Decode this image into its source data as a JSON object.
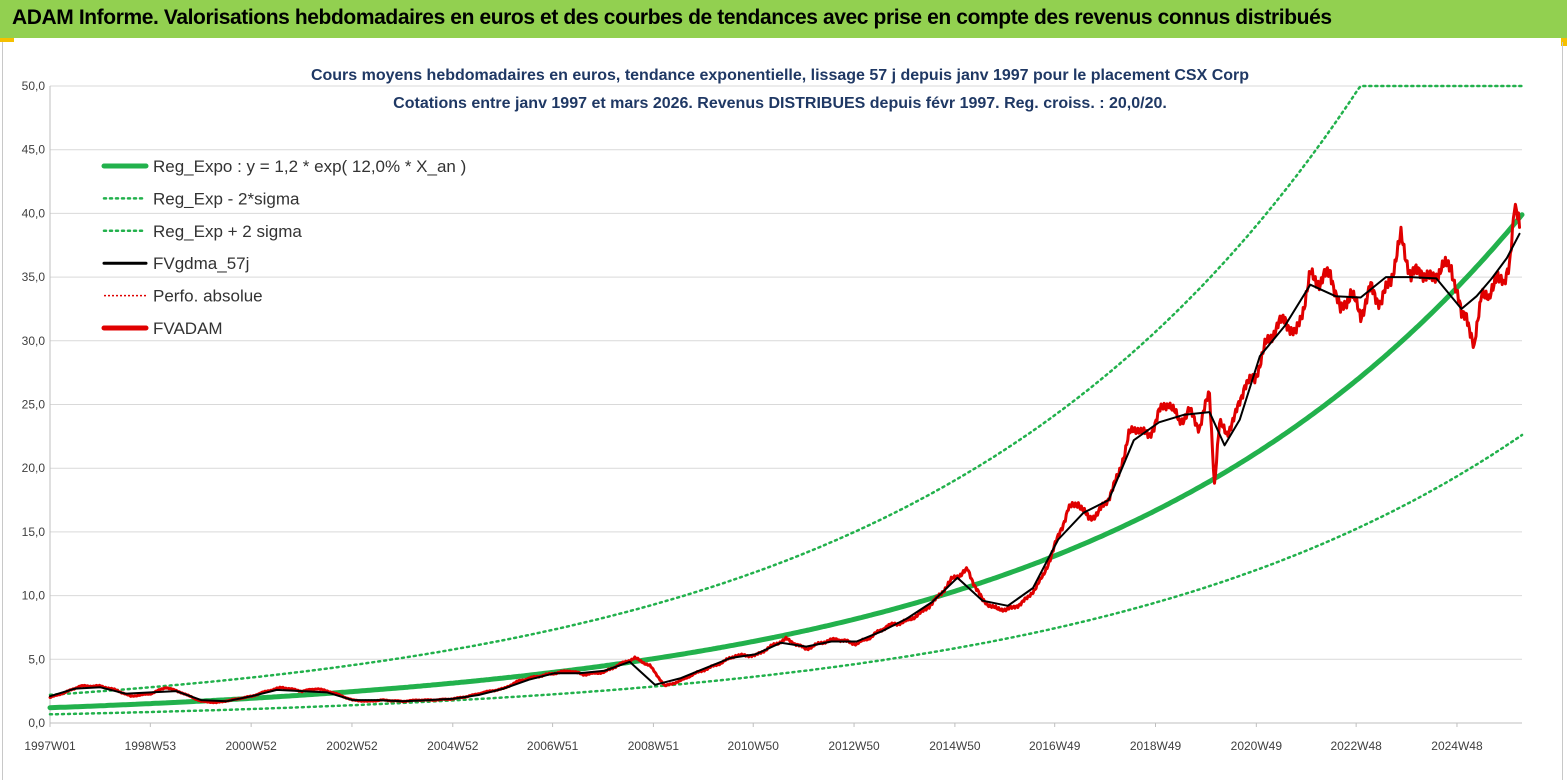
{
  "header": {
    "title": "ADAM Informe. Valorisations hebdomadaires en euros et des courbes de tendances avec prise en compte des revenus connus distribués"
  },
  "colors": {
    "banner": "#92d050",
    "accent": "#f5c000",
    "reg_expo": "#22b14c",
    "fvadam": "#e00000",
    "fvgdma": "#000000",
    "perfo": "#e00000",
    "title": "#1f3864"
  },
  "chart_data": {
    "type": "line",
    "title": "Cours moyens hebdomadaires en euros, tendance exponentielle, lissage 57 j depuis janv 1997 pour le placement CSX Corp",
    "subtitle": "Cotations entre janv 1997 et mars 2026. Revenus DISTRIBUES depuis févr 1997. Reg. croiss. : 20,0/20.",
    "xlabel": "",
    "ylabel": "",
    "x_range": [
      1997.0,
      2026.2
    ],
    "ylim": [
      0,
      50
    ],
    "y_ticks": [
      "0,0",
      "5,0",
      "10,0",
      "15,0",
      "20,0",
      "25,0",
      "30,0",
      "35,0",
      "40,0",
      "45,0",
      "50,0"
    ],
    "x_ticks": [
      {
        "label": "1997W01",
        "x": 1997.0
      },
      {
        "label": "1998W53",
        "x": 1998.99
      },
      {
        "label": "2000W52",
        "x": 2000.99
      },
      {
        "label": "2002W52",
        "x": 2002.99
      },
      {
        "label": "2004W52",
        "x": 2004.99
      },
      {
        "label": "2006W51",
        "x": 2006.97
      },
      {
        "label": "2008W51",
        "x": 2008.97
      },
      {
        "label": "2010W50",
        "x": 2010.95
      },
      {
        "label": "2012W50",
        "x": 2012.95
      },
      {
        "label": "2014W50",
        "x": 2014.95
      },
      {
        "label": "2016W49",
        "x": 2016.93
      },
      {
        "label": "2018W49",
        "x": 2018.93
      },
      {
        "label": "2020W49",
        "x": 2020.93
      },
      {
        "label": "2022W48",
        "x": 2022.91
      },
      {
        "label": "2024W48",
        "x": 2024.91
      }
    ],
    "grid": true,
    "legend": {
      "placement": "top-left",
      "entries": [
        {
          "label": "Reg_Expo : y = 1,2 * exp( 12,0% *  X_an )",
          "style": "solid-thick",
          "color": "#22b14c"
        },
        {
          "label": "Reg_Exp - 2*sigma",
          "style": "dotted",
          "color": "#22b14c"
        },
        {
          "label": "Reg_Exp + 2 sigma",
          "style": "dotted",
          "color": "#22b14c"
        },
        {
          "label": "FVgdma_57j",
          "style": "solid",
          "color": "#000000"
        },
        {
          "label": "Perfo. absolue",
          "style": "dotted-thin",
          "color": "#e00000"
        },
        {
          "label": "FVADAM",
          "style": "solid-thick",
          "color": "#e00000"
        }
      ]
    },
    "series": [
      {
        "name": "Reg_Expo",
        "kind": "exp",
        "a": 1.2,
        "rate": 0.12,
        "cap": 50
      },
      {
        "name": "Reg_Exp - 2*sigma",
        "kind": "exp",
        "a": 0.68,
        "rate": 0.12,
        "cap": 50
      },
      {
        "name": "Reg_Exp + 2 sigma",
        "kind": "exp",
        "a": 2.21,
        "rate": 0.12,
        "cap": 50
      },
      {
        "name": "FVADAM",
        "x": [
          1997.0,
          1997.3,
          1997.6,
          1998.0,
          1998.3,
          1998.6,
          1999.0,
          1999.3,
          1999.6,
          2000.0,
          2000.3,
          2000.6,
          2001.0,
          2001.3,
          2001.6,
          2002.0,
          2002.3,
          2002.6,
          2003.0,
          2003.3,
          2003.6,
          2004.0,
          2004.3,
          2004.6,
          2005.0,
          2005.3,
          2005.6,
          2006.0,
          2006.3,
          2006.6,
          2007.0,
          2007.3,
          2007.6,
          2008.0,
          2008.3,
          2008.6,
          2008.9,
          2009.2,
          2009.5,
          2009.8,
          2010.0,
          2010.3,
          2010.6,
          2011.0,
          2011.3,
          2011.6,
          2012.0,
          2012.3,
          2012.6,
          2013.0,
          2013.3,
          2013.6,
          2014.0,
          2014.3,
          2014.6,
          2014.9,
          2015.2,
          2015.5,
          2015.8,
          2016.1,
          2016.4,
          2016.7,
          2017.0,
          2017.2,
          2017.4,
          2017.6,
          2017.8,
          2018.0,
          2018.2,
          2018.4,
          2018.6,
          2018.8,
          2019.0,
          2019.2,
          2019.4,
          2019.6,
          2019.8,
          2020.0,
          2020.1,
          2020.2,
          2020.35,
          2020.5,
          2020.7,
          2020.9,
          2021.1,
          2021.3,
          2021.5,
          2021.7,
          2021.9,
          2022.0,
          2022.2,
          2022.4,
          2022.6,
          2022.8,
          2023.0,
          2023.2,
          2023.4,
          2023.6,
          2023.8,
          2024.0,
          2024.2,
          2024.4,
          2024.6,
          2024.8,
          2025.0,
          2025.1,
          2025.25,
          2025.4,
          2025.55,
          2025.7,
          2025.85,
          2025.95,
          2026.05,
          2026.15
        ],
        "values": [
          2.0,
          2.4,
          2.9,
          2.9,
          2.6,
          2.1,
          2.3,
          2.8,
          2.4,
          1.7,
          1.6,
          1.8,
          2.1,
          2.5,
          2.8,
          2.5,
          2.7,
          2.4,
          1.8,
          1.7,
          1.8,
          1.7,
          1.8,
          1.8,
          1.9,
          2.1,
          2.4,
          2.7,
          3.3,
          3.6,
          3.9,
          4.1,
          3.8,
          4.0,
          4.6,
          5.1,
          4.5,
          2.9,
          3.3,
          3.9,
          4.2,
          4.7,
          5.3,
          5.3,
          6.0,
          6.6,
          5.8,
          6.3,
          6.6,
          6.2,
          6.8,
          7.6,
          8.0,
          8.7,
          9.8,
          11.3,
          12.0,
          9.6,
          8.9,
          9.0,
          9.8,
          11.5,
          14.6,
          16.8,
          17.3,
          16.0,
          16.5,
          17.7,
          19.5,
          22.6,
          23.2,
          22.4,
          24.4,
          25.2,
          23.6,
          24.5,
          23.2,
          25.9,
          18.8,
          23.4,
          22.8,
          23.9,
          26.6,
          27.0,
          29.5,
          30.9,
          31.8,
          30.3,
          33.2,
          35.1,
          34.6,
          35.5,
          32.2,
          33.8,
          32.0,
          34.1,
          33.0,
          34.9,
          38.1,
          35.1,
          35.6,
          34.7,
          35.7,
          35.9,
          31.9,
          32.3,
          29.1,
          34.2,
          32.9,
          35.6,
          34.1,
          36.1,
          40.8,
          38.9
        ]
      },
      {
        "name": "FVgdma_57j",
        "x": [
          1997.0,
          1997.5,
          1998.0,
          1998.5,
          1999.0,
          1999.5,
          2000.0,
          2000.5,
          2001.0,
          2001.5,
          2002.0,
          2002.5,
          2003.0,
          2003.5,
          2004.0,
          2004.5,
          2005.0,
          2005.5,
          2006.0,
          2006.5,
          2007.0,
          2007.5,
          2008.0,
          2008.5,
          2009.0,
          2009.5,
          2010.0,
          2010.5,
          2011.0,
          2011.5,
          2012.0,
          2012.5,
          2013.0,
          2013.5,
          2014.0,
          2014.5,
          2015.0,
          2015.5,
          2016.0,
          2016.5,
          2017.0,
          2017.5,
          2018.0,
          2018.5,
          2019.0,
          2019.5,
          2020.0,
          2020.3,
          2020.6,
          2021.0,
          2021.5,
          2022.0,
          2022.5,
          2023.0,
          2023.5,
          2024.0,
          2024.5,
          2025.0,
          2025.3,
          2025.6,
          2025.9,
          2026.15
        ],
        "values": [
          2.1,
          2.7,
          2.8,
          2.3,
          2.4,
          2.5,
          1.8,
          1.7,
          2.1,
          2.6,
          2.5,
          2.4,
          1.8,
          1.8,
          1.7,
          1.8,
          1.9,
          2.2,
          2.7,
          3.4,
          3.9,
          3.9,
          4.1,
          4.8,
          3.0,
          3.5,
          4.3,
          5.1,
          5.4,
          6.3,
          6.0,
          6.4,
          6.4,
          7.2,
          8.2,
          9.5,
          11.4,
          9.6,
          9.2,
          10.6,
          14.4,
          16.5,
          17.5,
          22.2,
          23.6,
          24.2,
          24.4,
          21.8,
          23.8,
          28.8,
          31.2,
          34.4,
          33.5,
          33.4,
          35.0,
          35.0,
          34.9,
          32.5,
          33.5,
          34.9,
          36.5,
          38.4
        ]
      }
    ]
  }
}
